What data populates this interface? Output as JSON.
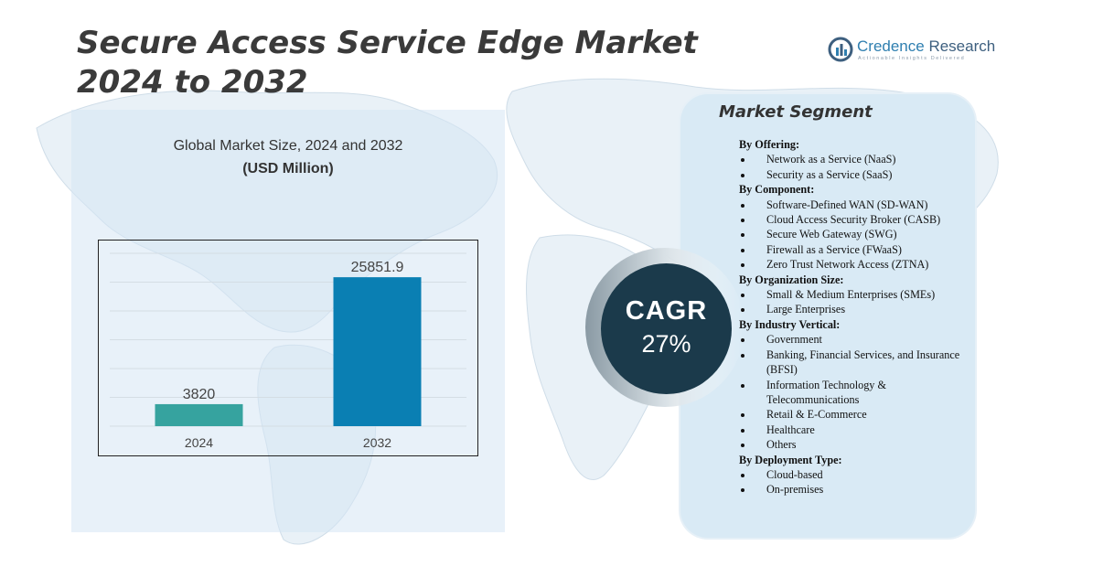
{
  "title": {
    "line1": "Secure Access Service Edge Market",
    "line2": "2024 to 2032"
  },
  "brand": {
    "name_part1": "Credence",
    "name_part2": "Research",
    "tagline": "Actionable Insights Delivered"
  },
  "chart_heading": {
    "line1": "Global Market Size, 2024 and 2032",
    "line2": "(USD Million)"
  },
  "chart_data": {
    "type": "bar",
    "categories": [
      "2024",
      "2032"
    ],
    "values": [
      3820,
      25851.9
    ],
    "value_labels": [
      "3820",
      "25851.9"
    ],
    "title": "Global Market Size, 2024 and 2032",
    "ylabel": "(USD Million)",
    "xlabel": "",
    "ylim": [
      0,
      30000
    ],
    "grid": true,
    "colors": [
      "#36a39f",
      "#0a7fb3"
    ]
  },
  "cagr": {
    "label": "CAGR",
    "value": "27%"
  },
  "segments": {
    "title": "Market Segment",
    "groups": [
      {
        "heading": "By Offering:",
        "items": [
          "Network as a Service (NaaS)",
          "Security as a Service (SaaS)"
        ]
      },
      {
        "heading": "By Component:",
        "items": [
          "Software-Defined WAN (SD-WAN)",
          "Cloud Access Security Broker (CASB)",
          "Secure Web Gateway (SWG)",
          "Firewall as a Service (FWaaS)",
          "Zero Trust Network Access (ZTNA)"
        ]
      },
      {
        "heading": "By Organization Size:",
        "items": [
          "Small & Medium Enterprises (SMEs)",
          "Large Enterprises"
        ]
      },
      {
        "heading": "By Industry Vertical:",
        "items": [
          "Government",
          "Banking, Financial Services, and Insurance (BFSI)",
          "Information Technology & Telecommunications",
          "Retail & E-Commerce",
          "Healthcare",
          "Others"
        ]
      },
      {
        "heading": "By Deployment Type:",
        "items": [
          "Cloud-based",
          "On-premises"
        ]
      }
    ]
  }
}
